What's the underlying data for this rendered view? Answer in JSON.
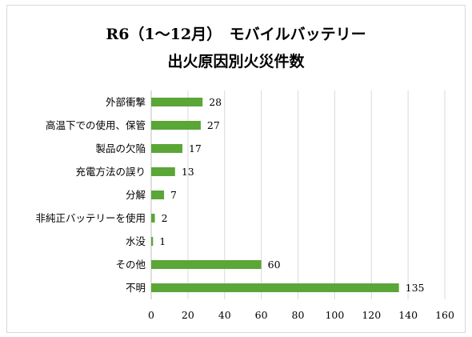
{
  "chart_data": {
    "type": "bar",
    "orientation": "horizontal",
    "title_line1": "R6（1〜12月）　モバイルバッテリー",
    "title_line2": "出火原因別火災件数",
    "categories": [
      "外部衝撃",
      "高温下での使用、保管",
      "製品の欠陥",
      "充電方法の誤り",
      "分解",
      "非純正バッテリーを使用",
      "水没",
      "その他",
      "不明"
    ],
    "values": [
      28,
      27,
      17,
      13,
      7,
      2,
      1,
      60,
      135
    ],
    "xlim": [
      0,
      160
    ],
    "xticks": [
      0,
      20,
      40,
      60,
      80,
      100,
      120,
      140,
      160
    ],
    "grid": "vertical",
    "bar_color": "#5aa636",
    "data_labels": true
  }
}
